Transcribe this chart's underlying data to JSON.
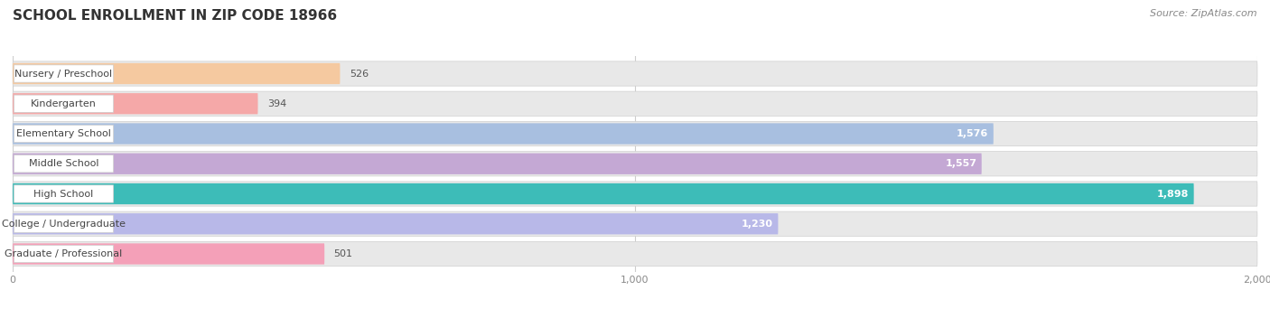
{
  "title": "SCHOOL ENROLLMENT IN ZIP CODE 18966",
  "source": "Source: ZipAtlas.com",
  "categories": [
    "Nursery / Preschool",
    "Kindergarten",
    "Elementary School",
    "Middle School",
    "High School",
    "College / Undergraduate",
    "Graduate / Professional"
  ],
  "values": [
    526,
    394,
    1576,
    1557,
    1898,
    1230,
    501
  ],
  "bar_colors": [
    "#f5c9a0",
    "#f5a8a8",
    "#a8bfe0",
    "#c4a8d4",
    "#3dbcb8",
    "#b8b8e8",
    "#f4a0b8"
  ],
  "bar_bg_color": "#e8e8e8",
  "xlim": [
    0,
    2000
  ],
  "xticks": [
    0,
    1000,
    2000
  ],
  "title_fontsize": 11,
  "source_fontsize": 8,
  "label_fontsize": 8,
  "value_fontsize": 8,
  "figsize": [
    14.06,
    3.42
  ],
  "dpi": 100
}
